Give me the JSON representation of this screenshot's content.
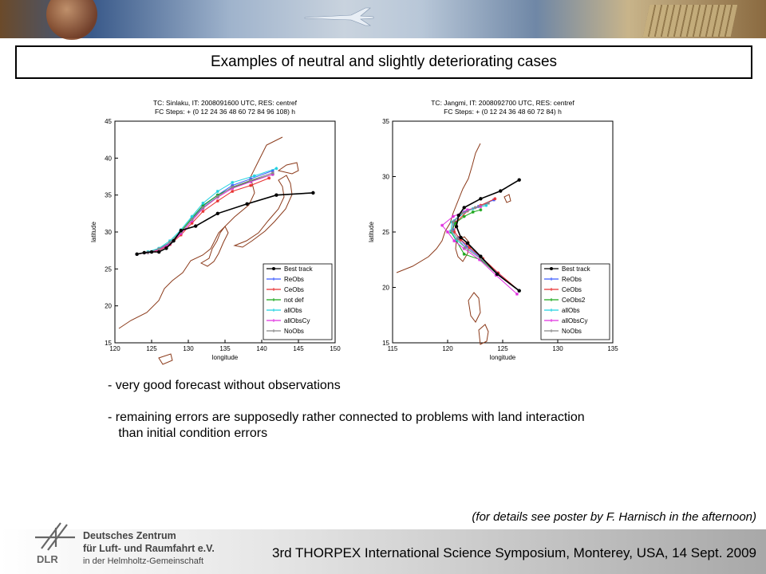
{
  "slide_title": "Examples of neutral and slightly deteriorating cases",
  "bullets": [
    "- very good forecast without observations",
    "- remaining errors are supposedly rather connected to problems with land interaction",
    "   than initial condition errors"
  ],
  "poster_note": "(for details see poster by F. Harnisch in the afternoon)",
  "footer": {
    "org_line1": "Deutsches Zentrum",
    "org_line2": "für Luft- und Raumfahrt e.V.",
    "org_line3": "in der Helmholtz-Gemeinschaft",
    "logo_abbr": "DLR",
    "symposium": "3rd THORPEX International Science Symposium, Monterey, USA, 14 Sept. 2009"
  },
  "colors": {
    "best": "#000000",
    "reobs": "#3b5bff",
    "ceobs": "#e83030",
    "ceobs2": "#1aa61a",
    "allobs": "#1fd0e0",
    "allobscy": "#e030e0",
    "noobs": "#888888",
    "coast": "#8b3a1a"
  },
  "chart_data": [
    {
      "type": "line",
      "title": "TC: Sinlaku, IT: 2008091600 UTC, RES: centref",
      "subtitle": "FC Steps: + (0  12  24  36  48  60  72  84  96  108) h",
      "xlabel": "longitude",
      "ylabel": "latitude",
      "xlim": [
        120,
        150
      ],
      "ylim": [
        15,
        45
      ],
      "xticks": [
        "120",
        "125",
        "130",
        "135",
        "140",
        "145",
        "150"
      ],
      "yticks": [
        "15",
        "20",
        "25",
        "30",
        "35",
        "40",
        "45"
      ],
      "legend_position": "bottom-right",
      "series": [
        {
          "name": "Best track",
          "color": "#000000",
          "x": [
            123,
            124,
            125,
            126,
            127,
            128,
            129,
            131,
            134,
            138,
            142,
            147
          ],
          "y": [
            27.0,
            27.2,
            27.3,
            27.3,
            27.8,
            28.8,
            30.2,
            30.8,
            32.5,
            33.8,
            35.0,
            35.3
          ]
        },
        {
          "name": "ReObs",
          "color": "#3b5bff",
          "x": [
            123,
            124.5,
            126,
            127.5,
            129,
            130.5,
            132,
            134,
            136,
            138.5,
            141.5
          ],
          "y": [
            27.0,
            27.2,
            27.6,
            28.5,
            30.0,
            31.8,
            33.5,
            35.0,
            36.3,
            37.2,
            38.3
          ]
        },
        {
          "name": "CeObs",
          "color": "#e83030",
          "x": [
            123,
            124.5,
            126,
            127.5,
            129,
            130.5,
            132,
            134,
            136,
            138.5,
            141
          ],
          "y": [
            27.0,
            27.2,
            27.5,
            28.3,
            29.6,
            31.2,
            32.8,
            34.2,
            35.5,
            36.3,
            37.3
          ]
        },
        {
          "name": "not def",
          "color": "#1aa61a",
          "x": [
            123,
            124.5,
            126,
            127.5,
            129,
            130.5,
            132,
            134,
            136,
            138.5,
            141.5
          ],
          "y": [
            27.0,
            27.3,
            27.7,
            28.6,
            30.1,
            31.9,
            33.6,
            35.0,
            36.0,
            36.9,
            37.8
          ]
        },
        {
          "name": "allObs",
          "color": "#1fd0e0",
          "x": [
            123,
            124.5,
            126,
            127.5,
            129,
            130.5,
            132,
            134,
            136,
            139,
            142
          ],
          "y": [
            27.0,
            27.3,
            27.8,
            28.8,
            30.3,
            32.1,
            33.9,
            35.5,
            36.7,
            37.6,
            38.6
          ]
        },
        {
          "name": "allObsCy",
          "color": "#e030e0",
          "x": [
            123,
            124.5,
            126,
            127.5,
            129,
            130.5,
            132,
            134,
            136,
            138.5,
            141.5
          ],
          "y": [
            27.0,
            27.2,
            27.6,
            28.4,
            29.8,
            31.5,
            33.2,
            34.7,
            35.9,
            36.8,
            37.8
          ]
        },
        {
          "name": "NoObs",
          "color": "#888888",
          "x": [
            123,
            124.5,
            126,
            127.5,
            129,
            130.5,
            132,
            134,
            136,
            138.5,
            141.5
          ],
          "y": [
            27.0,
            27.2,
            27.7,
            28.6,
            30.0,
            31.7,
            33.3,
            34.8,
            36.1,
            37.0,
            38.0
          ]
        }
      ]
    },
    {
      "type": "line",
      "title": "TC: Jangmi, IT: 2008092700 UTC, RES: centref",
      "subtitle": "FC Steps: + (0  12  24  36  48  60  72  84) h",
      "xlabel": "longitude",
      "ylabel": "latitude",
      "xlim": [
        115,
        135
      ],
      "ylim": [
        15,
        35
      ],
      "xticks": [
        "115",
        "120",
        "125",
        "130",
        "135"
      ],
      "yticks": [
        "15",
        "20",
        "25",
        "30",
        "35"
      ],
      "legend_position": "bottom-right",
      "series": [
        {
          "name": "Best track",
          "color": "#000000",
          "x": [
            126.5,
            124.5,
            123,
            121.8,
            121.2,
            120.8,
            121.0,
            121.5,
            123.0,
            124.8,
            126.5
          ],
          "y": [
            19.7,
            21.2,
            22.8,
            24.0,
            24.5,
            25.5,
            26.5,
            27.2,
            28.0,
            28.7,
            29.7
          ]
        },
        {
          "name": "ReObs",
          "color": "#3b5bff",
          "x": [
            126.5,
            124.5,
            123,
            121.7,
            121.0,
            120.5,
            120.6,
            121.5,
            122.8,
            124.2
          ],
          "y": [
            19.7,
            21.3,
            22.7,
            23.7,
            24.5,
            25.2,
            26.0,
            26.8,
            27.3,
            27.9
          ]
        },
        {
          "name": "CeObs",
          "color": "#e83030",
          "x": [
            126.5,
            124.6,
            123.2,
            122.0,
            121.2,
            120.6,
            120.8,
            121.8,
            123.0,
            124.3
          ],
          "y": [
            19.7,
            21.3,
            22.6,
            23.6,
            24.3,
            25.0,
            25.9,
            26.9,
            27.4,
            28.0
          ]
        },
        {
          "name": "CeObs2",
          "color": "#1aa61a",
          "x": [
            126.5,
            124.5,
            123,
            121.5,
            120.8,
            120.3,
            120.7,
            121.5,
            122.3,
            123.0
          ],
          "y": [
            19.7,
            21.2,
            22.5,
            23.0,
            24.2,
            25.0,
            25.8,
            26.4,
            26.8,
            27.0
          ]
        },
        {
          "name": "allObs",
          "color": "#1fd0e0",
          "x": [
            126.5,
            124.5,
            123,
            121.6,
            120.8,
            120.3,
            120.4,
            121.2,
            122.3,
            123.5
          ],
          "y": [
            19.7,
            21.2,
            22.6,
            23.6,
            24.3,
            25.1,
            25.9,
            26.6,
            27.1,
            27.4
          ]
        },
        {
          "name": "allObsCy",
          "color": "#e030e0",
          "x": [
            126.3,
            124.4,
            122.9,
            121.5,
            120.6,
            120.0,
            119.5,
            120.5,
            121.8,
            123.0
          ],
          "y": [
            19.4,
            21.1,
            22.5,
            23.5,
            24.2,
            25.0,
            25.6,
            26.4,
            27.0,
            27.3
          ]
        },
        {
          "name": "NoObs",
          "color": "#888888",
          "x": [
            126.5,
            124.5,
            123,
            121.6,
            120.9,
            120.4,
            120.5,
            121.3,
            122.5,
            123.7
          ],
          "y": [
            19.7,
            21.2,
            22.6,
            23.6,
            24.4,
            25.1,
            25.9,
            26.7,
            27.2,
            27.6
          ]
        }
      ]
    }
  ]
}
